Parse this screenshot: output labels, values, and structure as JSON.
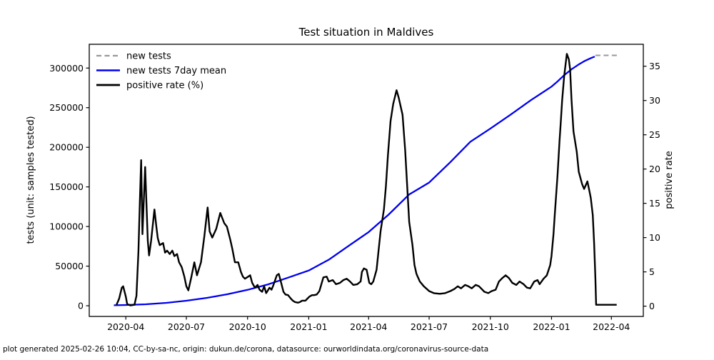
{
  "figure": {
    "background": "#ffffff"
  },
  "footer": {
    "note": "plot generated 2025-02-26 10:04, CC-by-sa-nc, origin: dukun.de/corona, datasource: ourworldindata.org/coronavirus-source-data",
    "color": "#8c8c8c"
  },
  "chart_data": {
    "type": "line",
    "title": "Test situation in Maldives",
    "ylabel_left": "tests (unit: samples tested)",
    "ylabel_right": "positive rate",
    "grid": false,
    "legend": {
      "position": "upper-left"
    },
    "xlim": [
      "2020-02-06",
      "2022-05-19"
    ],
    "ylim_left": [
      -13500,
      330000
    ],
    "ylim_right": [
      -1.5,
      38.2
    ],
    "x_ticks": [
      {
        "date": "2020-04-01",
        "label": "2020-04"
      },
      {
        "date": "2020-07-01",
        "label": "2020-07"
      },
      {
        "date": "2020-10-01",
        "label": "2020-10"
      },
      {
        "date": "2021-01-01",
        "label": "2021-01"
      },
      {
        "date": "2021-04-01",
        "label": "2021-04"
      },
      {
        "date": "2021-07-01",
        "label": "2021-07"
      },
      {
        "date": "2021-10-01",
        "label": "2021-10"
      },
      {
        "date": "2022-01-01",
        "label": "2022-01"
      },
      {
        "date": "2022-04-01",
        "label": "2022-04"
      }
    ],
    "y_ticks_left": [
      0,
      50000,
      100000,
      150000,
      200000,
      250000,
      300000
    ],
    "y_ticks_right": [
      0,
      5,
      10,
      15,
      20,
      25,
      30,
      35
    ],
    "series": [
      {
        "name": "new tests",
        "axis": "left",
        "color": "#999999",
        "dash": "7 4.5",
        "width": 2,
        "points": [
          [
            "2022-03-08",
            316000
          ],
          [
            "2022-04-10",
            316000
          ]
        ]
      },
      {
        "name": "new tests 7day mean",
        "axis": "left",
        "color": "#0000ee",
        "dash": null,
        "width": 2.3,
        "points": [
          [
            "2020-03-14",
            600
          ],
          [
            "2020-04-01",
            900
          ],
          [
            "2020-05-01",
            1800
          ],
          [
            "2020-06-01",
            3600
          ],
          [
            "2020-07-01",
            6300
          ],
          [
            "2020-08-01",
            9900
          ],
          [
            "2020-09-01",
            14500
          ],
          [
            "2020-10-01",
            20000
          ],
          [
            "2020-11-01",
            27000
          ],
          [
            "2020-12-01",
            35500
          ],
          [
            "2021-01-01",
            44500
          ],
          [
            "2021-02-01",
            58500
          ],
          [
            "2021-03-01",
            75000
          ],
          [
            "2021-04-01",
            93000
          ],
          [
            "2021-05-01",
            115000
          ],
          [
            "2021-06-01",
            140500
          ],
          [
            "2021-07-01",
            155500
          ],
          [
            "2021-08-01",
            180500
          ],
          [
            "2021-09-01",
            207000
          ],
          [
            "2021-10-01",
            223500
          ],
          [
            "2021-11-01",
            241500
          ],
          [
            "2021-12-01",
            259500
          ],
          [
            "2022-01-01",
            276500
          ],
          [
            "2022-01-10",
            283000
          ],
          [
            "2022-01-20",
            291000
          ],
          [
            "2022-02-01",
            299000
          ],
          [
            "2022-02-10",
            304000
          ],
          [
            "2022-02-20",
            309000
          ],
          [
            "2022-03-01",
            312500
          ],
          [
            "2022-03-07",
            314500
          ]
        ]
      },
      {
        "name": "positive rate (%)",
        "axis": "right",
        "color": "#000000",
        "dash": null,
        "width": 2.4,
        "points": [
          [
            "2020-03-18",
            0.2
          ],
          [
            "2020-03-22",
            1.1
          ],
          [
            "2020-03-26",
            2.7
          ],
          [
            "2020-03-28",
            2.9
          ],
          [
            "2020-04-01",
            1.4
          ],
          [
            "2020-04-03",
            0.3
          ],
          [
            "2020-04-08",
            0.1
          ],
          [
            "2020-04-14",
            0.2
          ],
          [
            "2020-04-17",
            1.5
          ],
          [
            "2020-04-20",
            8.0
          ],
          [
            "2020-04-22",
            15.0
          ],
          [
            "2020-04-24",
            21.3
          ],
          [
            "2020-04-26",
            10.5
          ],
          [
            "2020-04-30",
            20.3
          ],
          [
            "2020-05-02",
            15.0
          ],
          [
            "2020-05-04",
            9.5
          ],
          [
            "2020-05-06",
            7.4
          ],
          [
            "2020-05-09",
            9.5
          ],
          [
            "2020-05-14",
            14.1
          ],
          [
            "2020-05-17",
            11.5
          ],
          [
            "2020-05-19",
            9.9
          ],
          [
            "2020-05-22",
            8.9
          ],
          [
            "2020-05-27",
            9.2
          ],
          [
            "2020-05-30",
            7.8
          ],
          [
            "2020-06-02",
            8.1
          ],
          [
            "2020-06-06",
            7.6
          ],
          [
            "2020-06-10",
            8.1
          ],
          [
            "2020-06-13",
            7.3
          ],
          [
            "2020-06-17",
            7.6
          ],
          [
            "2020-06-20",
            6.4
          ],
          [
            "2020-06-24",
            5.7
          ],
          [
            "2020-06-28",
            4.3
          ],
          [
            "2020-07-01",
            2.9
          ],
          [
            "2020-07-04",
            2.3
          ],
          [
            "2020-07-08",
            4.0
          ],
          [
            "2020-07-13",
            6.4
          ],
          [
            "2020-07-17",
            4.5
          ],
          [
            "2020-07-23",
            6.4
          ],
          [
            "2020-07-28",
            10.2
          ],
          [
            "2020-08-02",
            14.4
          ],
          [
            "2020-08-05",
            10.9
          ],
          [
            "2020-08-09",
            10.0
          ],
          [
            "2020-08-15",
            11.3
          ],
          [
            "2020-08-21",
            13.6
          ],
          [
            "2020-08-27",
            12.1
          ],
          [
            "2020-08-31",
            11.6
          ],
          [
            "2020-09-05",
            9.7
          ],
          [
            "2020-09-08",
            8.4
          ],
          [
            "2020-09-12",
            6.4
          ],
          [
            "2020-09-17",
            6.4
          ],
          [
            "2020-09-21",
            5.0
          ],
          [
            "2020-09-24",
            4.3
          ],
          [
            "2020-09-27",
            4.0
          ],
          [
            "2020-10-02",
            4.3
          ],
          [
            "2020-10-05",
            4.5
          ],
          [
            "2020-10-08",
            3.4
          ],
          [
            "2020-10-12",
            2.7
          ],
          [
            "2020-10-16",
            3.1
          ],
          [
            "2020-10-19",
            2.4
          ],
          [
            "2020-10-23",
            2.1
          ],
          [
            "2020-10-26",
            2.9
          ],
          [
            "2020-10-29",
            1.9
          ],
          [
            "2020-11-03",
            2.7
          ],
          [
            "2020-11-06",
            2.4
          ],
          [
            "2020-11-09",
            3.1
          ],
          [
            "2020-11-14",
            4.5
          ],
          [
            "2020-11-17",
            4.7
          ],
          [
            "2020-11-20",
            3.6
          ],
          [
            "2020-11-24",
            2.1
          ],
          [
            "2020-11-27",
            1.7
          ],
          [
            "2020-12-01",
            1.6
          ],
          [
            "2020-12-05",
            1.1
          ],
          [
            "2020-12-08",
            0.8
          ],
          [
            "2020-12-11",
            0.6
          ],
          [
            "2020-12-16",
            0.5
          ],
          [
            "2020-12-19",
            0.6
          ],
          [
            "2020-12-22",
            0.8
          ],
          [
            "2020-12-27",
            0.8
          ],
          [
            "2020-12-30",
            1.1
          ],
          [
            "2021-01-02",
            1.4
          ],
          [
            "2021-01-06",
            1.6
          ],
          [
            "2021-01-09",
            1.6
          ],
          [
            "2021-01-13",
            1.7
          ],
          [
            "2021-01-17",
            2.2
          ],
          [
            "2021-01-20",
            3.2
          ],
          [
            "2021-01-23",
            4.2
          ],
          [
            "2021-01-28",
            4.3
          ],
          [
            "2021-01-31",
            3.6
          ],
          [
            "2021-02-06",
            3.8
          ],
          [
            "2021-02-11",
            3.2
          ],
          [
            "2021-02-17",
            3.4
          ],
          [
            "2021-02-22",
            3.8
          ],
          [
            "2021-02-27",
            4.0
          ],
          [
            "2021-03-04",
            3.6
          ],
          [
            "2021-03-09",
            3.1
          ],
          [
            "2021-03-15",
            3.2
          ],
          [
            "2021-03-20",
            3.6
          ],
          [
            "2021-03-22",
            5.0
          ],
          [
            "2021-03-25",
            5.5
          ],
          [
            "2021-03-29",
            5.3
          ],
          [
            "2021-04-02",
            3.4
          ],
          [
            "2021-04-05",
            3.2
          ],
          [
            "2021-04-08",
            3.6
          ],
          [
            "2021-04-13",
            5.3
          ],
          [
            "2021-04-16",
            8.1
          ],
          [
            "2021-04-19",
            10.9
          ],
          [
            "2021-04-24",
            14.1
          ],
          [
            "2021-04-27",
            17.5
          ],
          [
            "2021-04-30",
            22.0
          ],
          [
            "2021-05-04",
            27.0
          ],
          [
            "2021-05-08",
            29.5
          ],
          [
            "2021-05-13",
            31.5
          ],
          [
            "2021-05-16",
            30.5
          ],
          [
            "2021-05-22",
            27.9
          ],
          [
            "2021-05-26",
            22.7
          ],
          [
            "2021-05-29",
            17.5
          ],
          [
            "2021-06-01",
            12.3
          ],
          [
            "2021-06-06",
            8.9
          ],
          [
            "2021-06-09",
            6.0
          ],
          [
            "2021-06-12",
            4.7
          ],
          [
            "2021-06-17",
            3.6
          ],
          [
            "2021-06-23",
            2.9
          ],
          [
            "2021-07-01",
            2.2
          ],
          [
            "2021-07-08",
            1.9
          ],
          [
            "2021-07-17",
            1.8
          ],
          [
            "2021-07-25",
            1.9
          ],
          [
            "2021-08-02",
            2.2
          ],
          [
            "2021-08-08",
            2.5
          ],
          [
            "2021-08-13",
            2.9
          ],
          [
            "2021-08-18",
            2.6
          ],
          [
            "2021-08-24",
            3.1
          ],
          [
            "2021-08-29",
            2.9
          ],
          [
            "2021-09-03",
            2.6
          ],
          [
            "2021-09-09",
            3.1
          ],
          [
            "2021-09-14",
            2.9
          ],
          [
            "2021-09-22",
            2.1
          ],
          [
            "2021-09-28",
            1.9
          ],
          [
            "2021-10-03",
            2.2
          ],
          [
            "2021-10-09",
            2.4
          ],
          [
            "2021-10-14",
            3.6
          ],
          [
            "2021-10-19",
            4.1
          ],
          [
            "2021-10-24",
            4.5
          ],
          [
            "2021-10-29",
            4.1
          ],
          [
            "2021-11-03",
            3.4
          ],
          [
            "2021-11-09",
            3.1
          ],
          [
            "2021-11-14",
            3.6
          ],
          [
            "2021-11-20",
            3.2
          ],
          [
            "2021-11-25",
            2.7
          ],
          [
            "2021-11-30",
            2.6
          ],
          [
            "2021-12-06",
            3.6
          ],
          [
            "2021-12-11",
            3.8
          ],
          [
            "2021-12-14",
            3.2
          ],
          [
            "2021-12-20",
            4.0
          ],
          [
            "2021-12-25",
            4.5
          ],
          [
            "2021-12-30",
            6.0
          ],
          [
            "2022-01-01",
            7.3
          ],
          [
            "2022-01-04",
            10.5
          ],
          [
            "2022-01-06",
            13.5
          ],
          [
            "2022-01-10",
            19.0
          ],
          [
            "2022-01-13",
            24.0
          ],
          [
            "2022-01-15",
            27.0
          ],
          [
            "2022-01-17",
            30.0
          ],
          [
            "2022-01-20",
            33.5
          ],
          [
            "2022-01-24",
            36.8
          ],
          [
            "2022-01-27",
            36.0
          ],
          [
            "2022-01-29",
            34.5
          ],
          [
            "2022-01-31",
            30.2
          ],
          [
            "2022-02-03",
            25.5
          ],
          [
            "2022-02-08",
            22.5
          ],
          [
            "2022-02-11",
            19.6
          ],
          [
            "2022-02-16",
            17.8
          ],
          [
            "2022-02-19",
            17.1
          ],
          [
            "2022-02-24",
            18.2
          ],
          [
            "2022-02-27",
            16.8
          ],
          [
            "2022-03-01",
            15.8
          ],
          [
            "2022-03-04",
            13.3
          ],
          [
            "2022-03-06",
            9.2
          ],
          [
            "2022-03-08",
            4.0
          ],
          [
            "2022-03-09",
            0.2
          ],
          [
            "2022-04-09",
            0.2
          ]
        ]
      }
    ]
  }
}
